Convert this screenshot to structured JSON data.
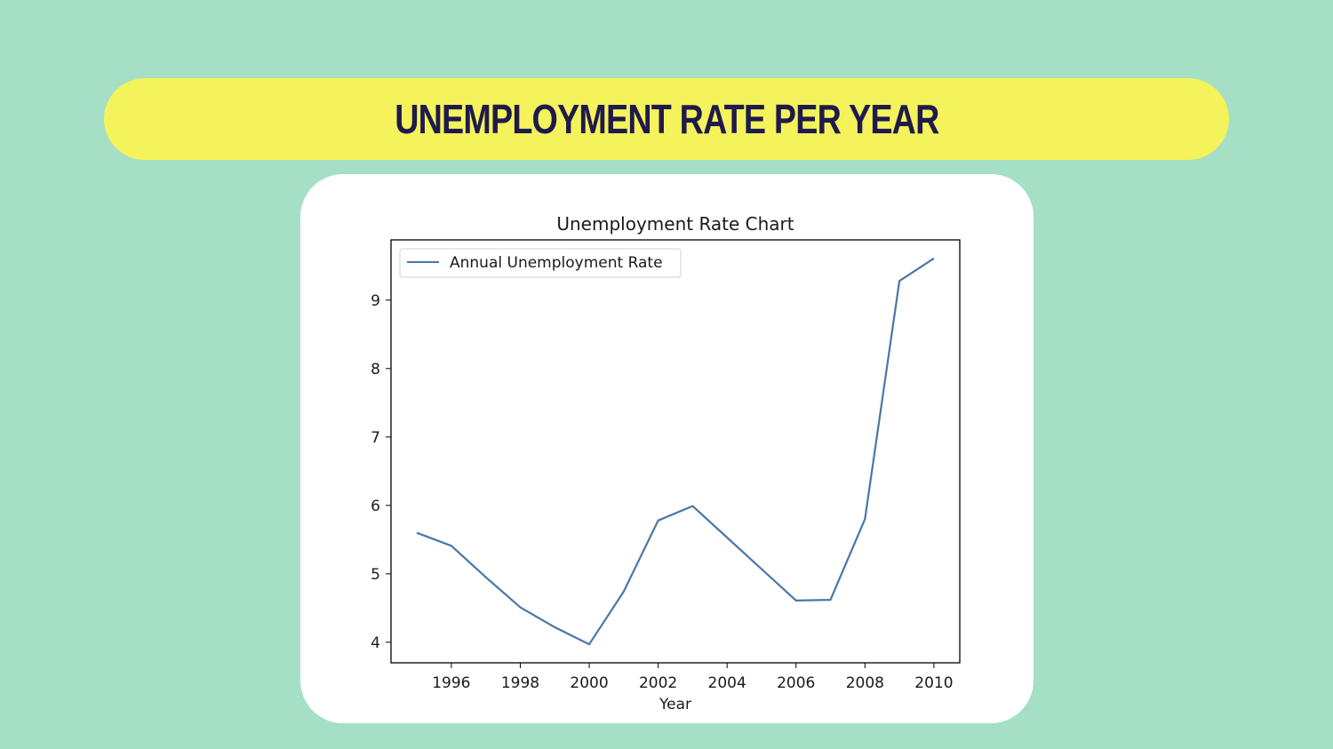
{
  "header": {
    "title": "Unemployment rate per year"
  },
  "chart_data": {
    "type": "line",
    "title": "Unemployment Rate Chart",
    "xlabel": "Year",
    "ylabel": "",
    "x": [
      1995,
      1996,
      1997,
      1998,
      1999,
      2000,
      2001,
      2002,
      2003,
      2004,
      2005,
      2006,
      2007,
      2008,
      2009,
      2010
    ],
    "series": [
      {
        "name": "Annual Unemployment Rate",
        "values": [
          5.6,
          5.41,
          4.95,
          4.51,
          4.22,
          3.97,
          4.74,
          5.78,
          5.99,
          5.53,
          5.07,
          4.61,
          4.62,
          5.8,
          9.28,
          9.61
        ],
        "color": "#4a76a8"
      }
    ],
    "xticks": [
      1996,
      1998,
      2000,
      2002,
      2004,
      2006,
      2008,
      2010
    ],
    "yticks": [
      4,
      5,
      6,
      7,
      8,
      9
    ],
    "xlim": [
      1994.25,
      2010.75
    ],
    "ylim": [
      3.7,
      9.88
    ],
    "grid": false,
    "legend_position": "upper-left"
  }
}
